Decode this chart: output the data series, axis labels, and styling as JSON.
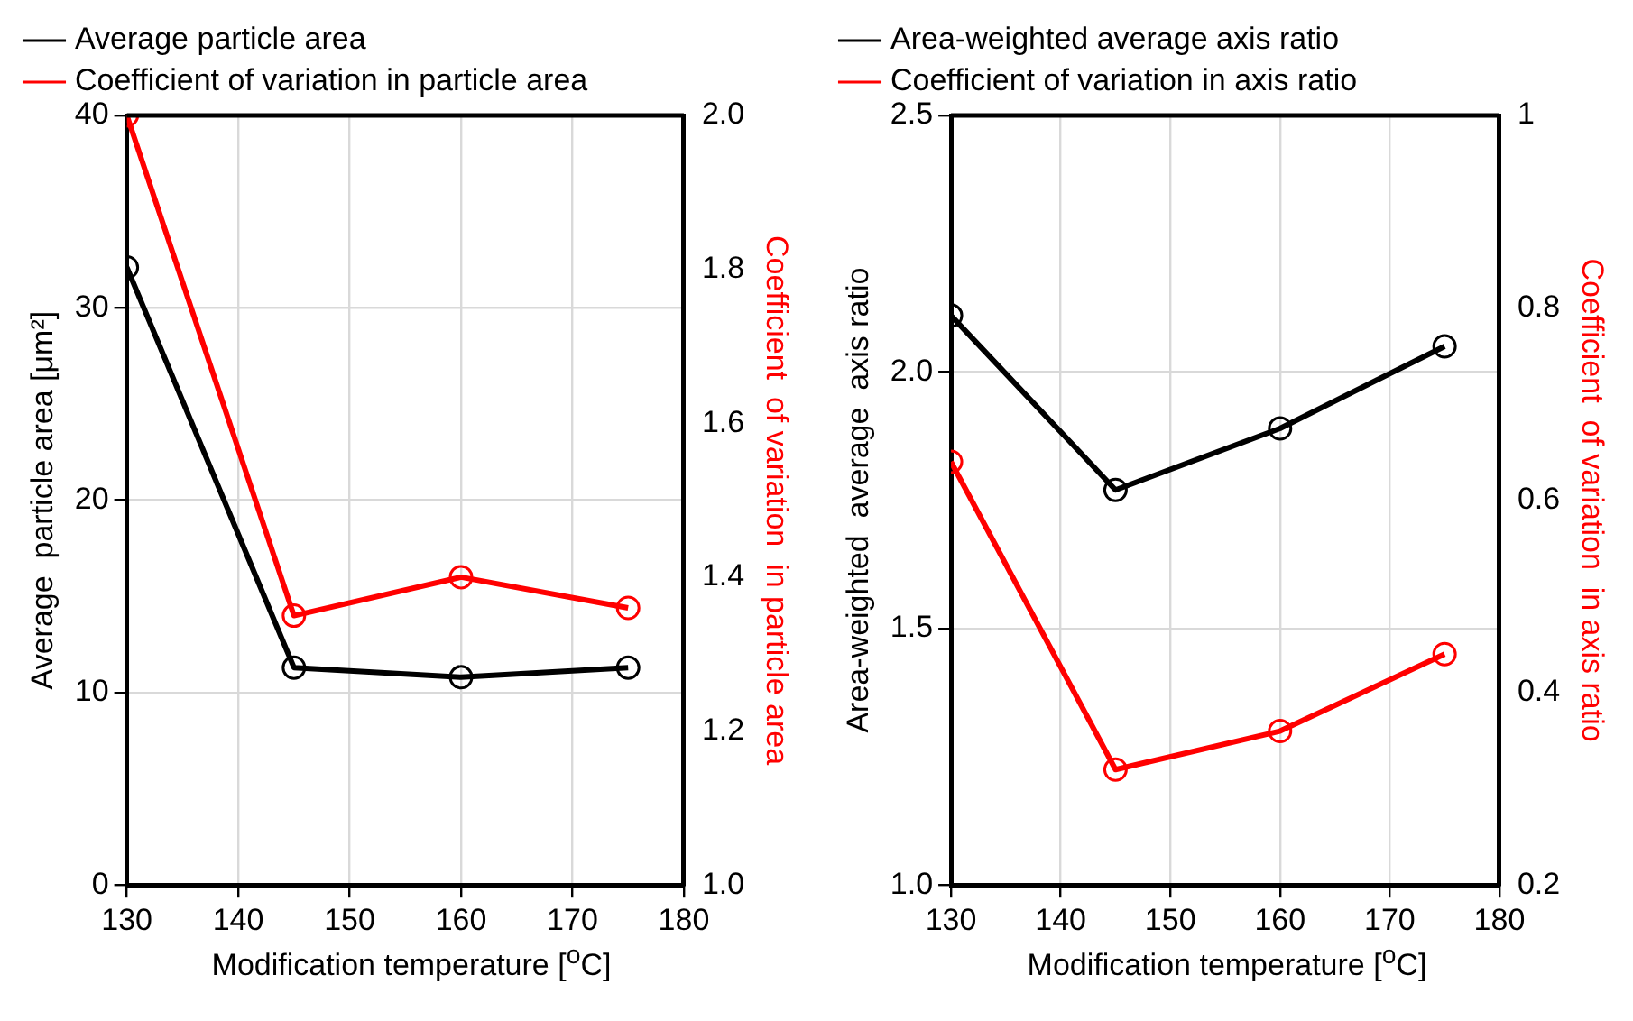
{
  "chart_data": [
    {
      "type": "line",
      "x": [
        130,
        145,
        160,
        175
      ],
      "xlabel": "Modification temperature [$^{o}$C]",
      "ylabel": "Average  particle area [μm²]",
      "y2label": "Coefficient  of variation  in particle area",
      "series": [
        {
          "name": "Average particle area",
          "color": "#000000",
          "values": [
            32.1,
            11.3,
            10.8,
            11.3
          ]
        },
        {
          "name": "Coefficient of variation in particle area",
          "color": "#ff0000",
          "values": [
            2.0,
            1.35,
            1.4,
            1.36
          ],
          "axis": "y2"
        }
      ],
      "xlim": [
        130,
        180
      ],
      "xticks": [
        130,
        140,
        150,
        160,
        170,
        180
      ],
      "ylim": [
        0,
        40
      ],
      "yticks": [
        0,
        10,
        20,
        30,
        40
      ],
      "y2lim": [
        1.0,
        2.0
      ],
      "y2ticks": [
        {
          "value": 1,
          "label": "1.0"
        },
        1.2,
        1.4,
        1.6,
        1.8,
        {
          "value": 2,
          "label": "2.0"
        }
      ],
      "grid": true,
      "legend": "top",
      "marker": "circle",
      "line_style": "solid"
    },
    {
      "type": "line",
      "x": [
        130,
        145,
        160,
        175
      ],
      "xlabel": "Modification temperature [$^{o}$C]",
      "ylabel": "Area-weighted  average  axis ratio",
      "y2label": "Coefficient  of variation  in axis ratio",
      "series": [
        {
          "name": "Area-weighted average axis ratio",
          "color": "#000000",
          "values": [
            2.11,
            1.77,
            1.89,
            2.05
          ]
        },
        {
          "name": "Coefficient of variation in axis ratio",
          "color": "#ff0000",
          "values": [
            0.64,
            0.32,
            0.36,
            0.44
          ],
          "axis": "y2"
        }
      ],
      "xlim": [
        130,
        180
      ],
      "xticks": [
        130,
        140,
        150,
        160,
        170,
        180
      ],
      "ylim": [
        1.0,
        2.5
      ],
      "yticks": [
        {
          "value": 1,
          "label": "1.0"
        },
        1.5,
        {
          "value": 2,
          "label": "2.0"
        },
        2.5
      ],
      "y2lim": [
        0.2,
        1
      ],
      "y2ticks": [
        0.2,
        0.4,
        0.6,
        0.8,
        1
      ],
      "grid": true,
      "legend": "top",
      "marker": "circle",
      "line_style": "solid"
    }
  ]
}
